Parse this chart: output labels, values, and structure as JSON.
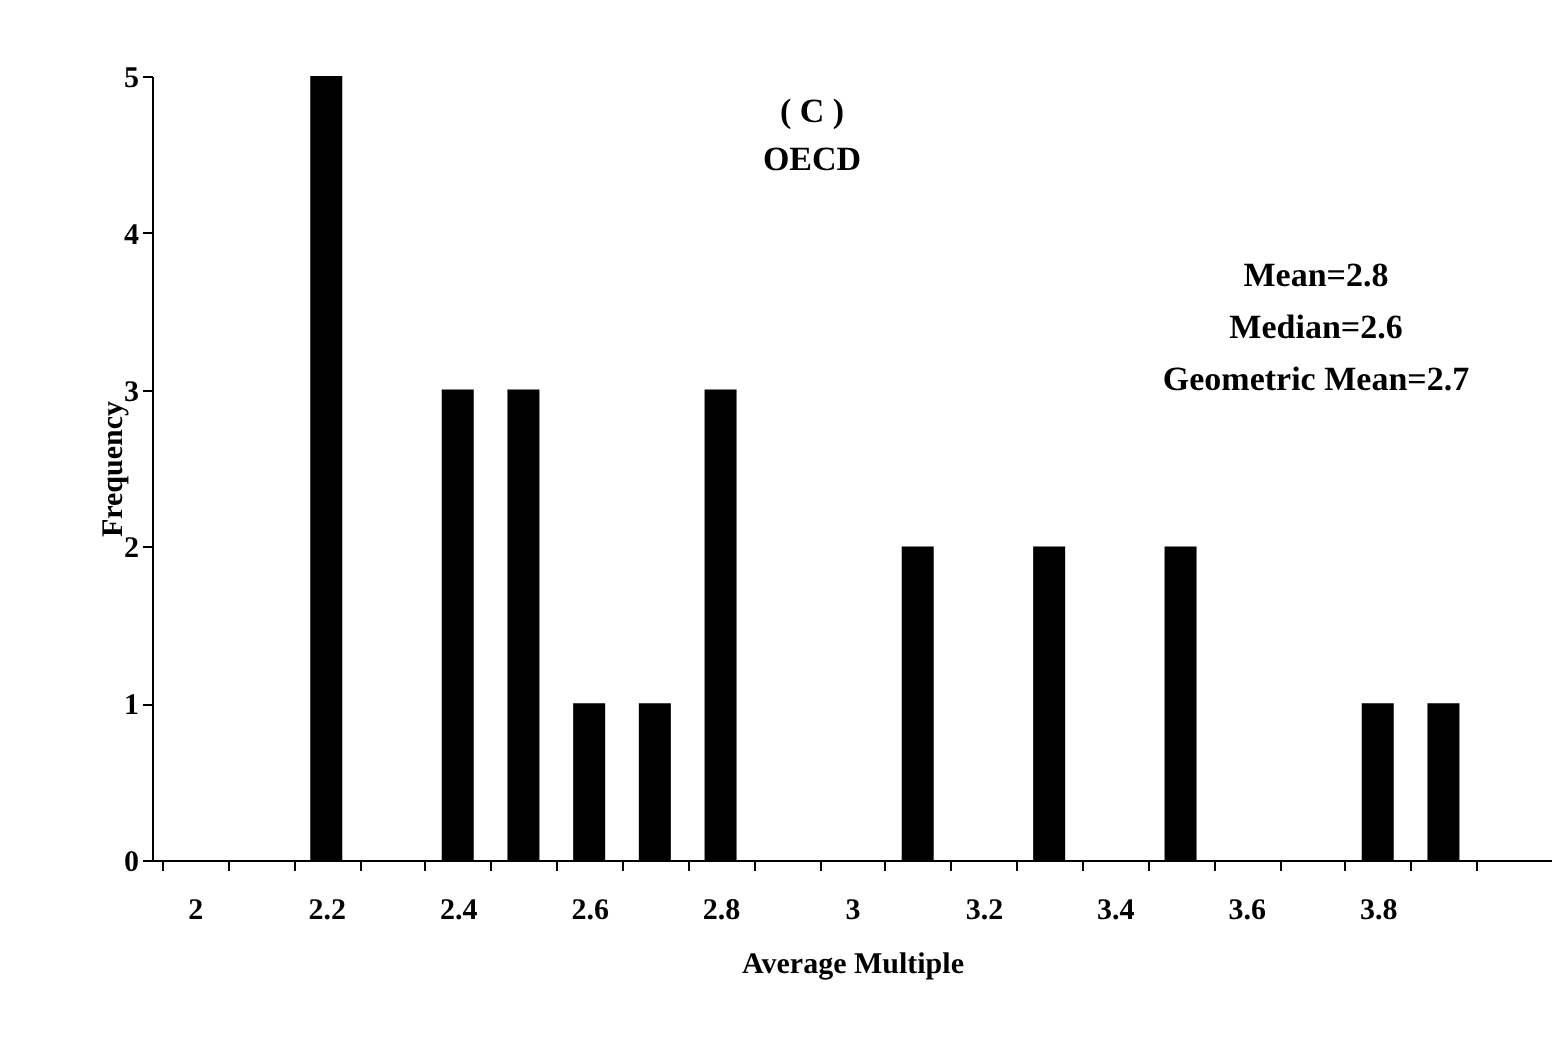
{
  "chart_data": {
    "type": "bar",
    "title": "( C )",
    "subtitle": "OECD",
    "xlabel": "Average Multiple",
    "ylabel": "Frequency",
    "x": [
      2.2,
      2.4,
      2.5,
      2.6,
      2.7,
      2.8,
      3.1,
      3.3,
      3.5,
      3.8,
      3.9
    ],
    "values": [
      5,
      3,
      3,
      1,
      1,
      3,
      2,
      2,
      2,
      1,
      1
    ],
    "color": "#000000",
    "xlim": [
      1.95,
      4.05
    ],
    "xticks": [
      2,
      2.2,
      2.4,
      2.6,
      2.8,
      3,
      3.2,
      3.4,
      3.6,
      3.8,
      {
        "value": 1.95,
        "label": null
      },
      {
        "value": 2.05,
        "label": null
      },
      {
        "value": 2.15,
        "label": null
      },
      {
        "value": 2.25,
        "label": null
      },
      {
        "value": 2.35,
        "label": null
      },
      {
        "value": 2.45,
        "label": null
      },
      {
        "value": 2.55,
        "label": null
      },
      {
        "value": 2.65,
        "label": null
      },
      {
        "value": 2.75,
        "label": null
      },
      {
        "value": 2.85,
        "label": null
      },
      {
        "value": 2.95,
        "label": null
      },
      {
        "value": 3.05,
        "label": null
      },
      {
        "value": 3.15,
        "label": null
      },
      {
        "value": 3.25,
        "label": null
      },
      {
        "value": 3.35,
        "label": null
      },
      {
        "value": 3.45,
        "label": null
      },
      {
        "value": 3.55,
        "label": null
      },
      {
        "value": 3.65,
        "label": null
      },
      {
        "value": 3.75,
        "label": null
      },
      {
        "value": 3.85,
        "label": null
      },
      {
        "value": 3.95,
        "label": null
      }
    ],
    "ylim": [
      0,
      5
    ],
    "yticks": [
      0,
      1,
      2,
      3,
      4,
      5
    ],
    "grid": false,
    "annotations": [
      "Mean=2.8",
      "Median=2.6",
      "Geometric Mean=2.7"
    ]
  }
}
